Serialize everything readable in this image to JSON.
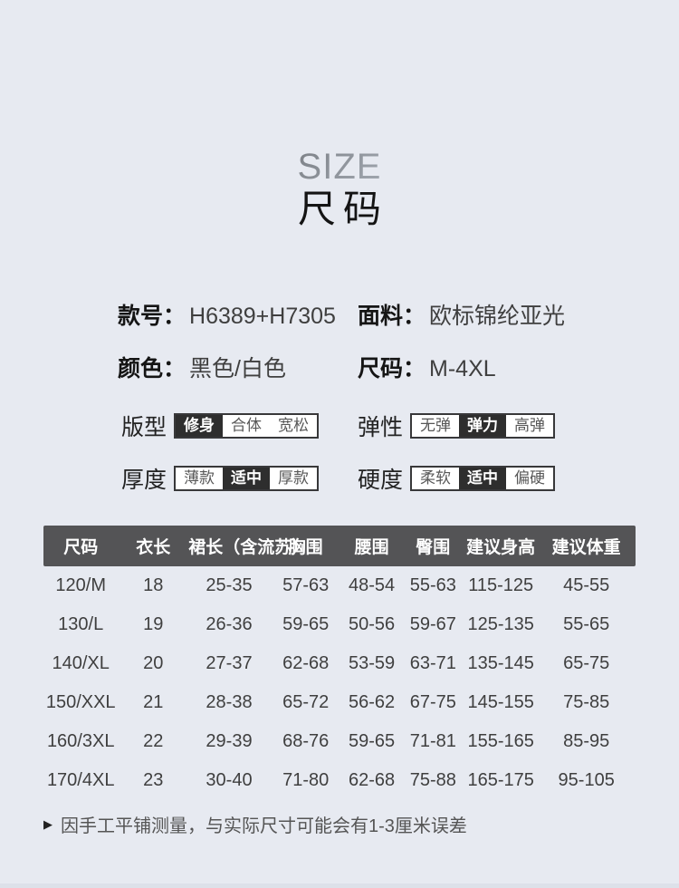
{
  "title": {
    "en": "SIZE",
    "zh": "尺码"
  },
  "specs": [
    {
      "label": "款号：",
      "value": "H6389+H7305"
    },
    {
      "label": "面料：",
      "value": "欧标锦纶亚光"
    },
    {
      "label": "颜色：",
      "value": "黑色/白色"
    },
    {
      "label": "尺码：",
      "value": "M-4XL"
    }
  ],
  "attributes": [
    {
      "label": "版型",
      "options": [
        "修身",
        "合体",
        "宽松"
      ],
      "selected_index": 0
    },
    {
      "label": "弹性",
      "options": [
        "无弹",
        "弹力",
        "高弹"
      ],
      "selected_index": 1
    },
    {
      "label": "厚度",
      "options": [
        "薄款",
        "适中",
        "厚款"
      ],
      "selected_index": 1
    },
    {
      "label": "硬度",
      "options": [
        "柔软",
        "适中",
        "偏硬"
      ],
      "selected_index": 1
    }
  ],
  "size_table": {
    "headers": [
      "尺码",
      "衣长",
      "裙长（含流苏）",
      "胸围",
      "腰围",
      "臀围",
      "建议身高",
      "建议体重"
    ],
    "rows": [
      [
        "120/M",
        "18",
        "25-35",
        "57-63",
        "48-54",
        "55-63",
        "115-125",
        "45-55"
      ],
      [
        "130/L",
        "19",
        "26-36",
        "59-65",
        "50-56",
        "59-67",
        "125-135",
        "55-65"
      ],
      [
        "140/XL",
        "20",
        "27-37",
        "62-68",
        "53-59",
        "63-71",
        "135-145",
        "65-75"
      ],
      [
        "150/XXL",
        "21",
        "28-38",
        "65-72",
        "56-62",
        "67-75",
        "145-155",
        "75-85"
      ],
      [
        "160/3XL",
        "22",
        "29-39",
        "68-76",
        "59-65",
        "71-81",
        "155-165",
        "85-95"
      ],
      [
        "170/4XL",
        "23",
        "30-40",
        "71-80",
        "62-68",
        "75-88",
        "165-175",
        "95-105"
      ]
    ]
  },
  "note": {
    "bullet": "▶",
    "text": "因手工平铺测量，与实际尺寸可能会有1-3厘米误差"
  },
  "colors": {
    "page_bg": "#e7eaf1",
    "table_header_bg": "#545456",
    "segment_selected_bg": "#2e2e2e",
    "segment_border": "#38383a",
    "title_text": "#141414",
    "body_text": "#3f3f3f"
  }
}
